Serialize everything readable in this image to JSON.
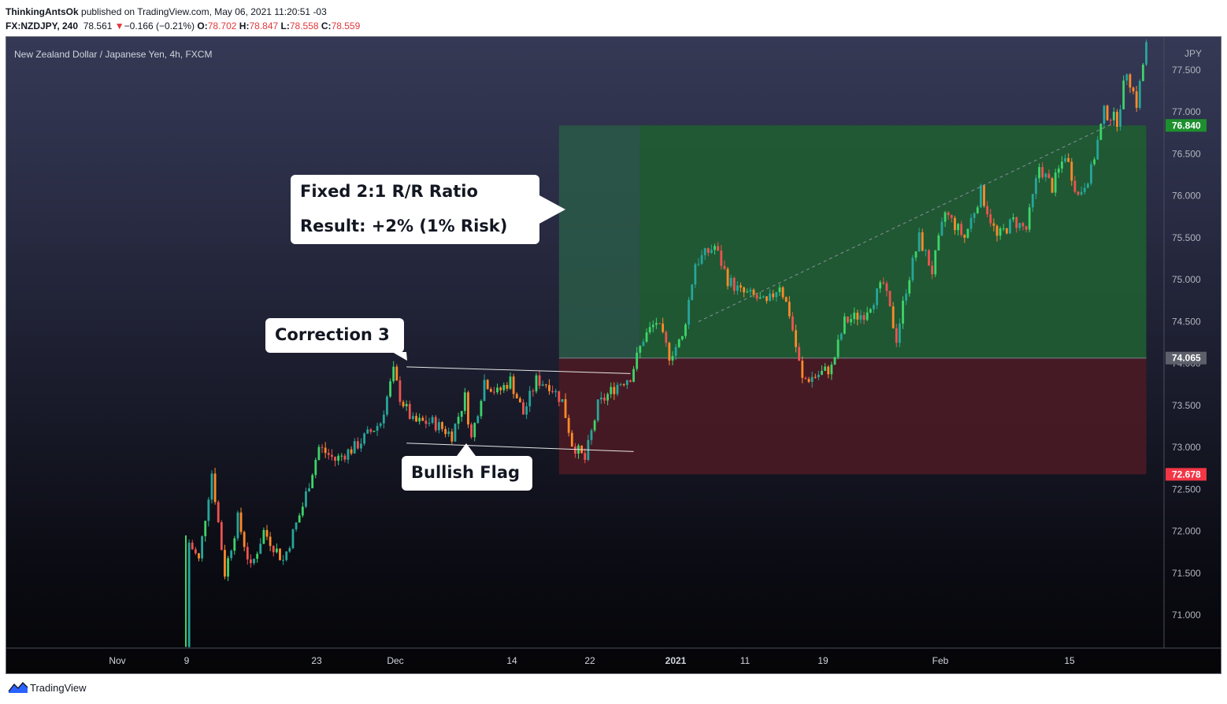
{
  "header": {
    "author": "ThinkingAntsOk",
    "published_text": "published on TradingView.com, May 06, 2021 11:20:51 -03",
    "symbol": "FX:NZDJPY, 240",
    "last": "78.561",
    "change_arrow": "▼",
    "change": "−0.166 (−0.21%)",
    "o_label": "O:",
    "o_value": "78.702",
    "h_label": "H:",
    "h_value": "78.847",
    "l_label": "L:",
    "l_value": "78.558",
    "c_label": "C:",
    "c_value": "78.559"
  },
  "footer": {
    "brand": "TradingView"
  },
  "chart_data": {
    "type": "candlestick",
    "title": "New Zealand Dollar / Japanese Yen, 4h, FXCM",
    "currency": "JPY",
    "ylim": [
      70.6,
      77.85
    ],
    "y_ticks": [
      "71.000",
      "71.500",
      "72.000",
      "72.500",
      "73.000",
      "73.500",
      "74.000",
      "74.500",
      "75.000",
      "75.500",
      "76.000",
      "76.500",
      "77.000",
      "77.500"
    ],
    "x_ticks": [
      "Nov",
      "9",
      "23",
      "Dec",
      "14",
      "22",
      "2021",
      "11",
      "19",
      "Feb",
      "15"
    ],
    "price_path": [
      [
        0,
        70.62
      ],
      [
        0.5,
        71.9
      ],
      [
        4,
        71.65
      ],
      [
        8,
        72.7
      ],
      [
        12,
        71.5
      ],
      [
        16,
        72.15
      ],
      [
        20,
        71.55
      ],
      [
        24,
        72.0
      ],
      [
        30,
        71.65
      ],
      [
        36,
        72.3
      ],
      [
        41,
        73.0
      ],
      [
        46,
        72.85
      ],
      [
        52,
        73.0
      ],
      [
        60,
        73.3
      ],
      [
        64,
        73.9
      ],
      [
        66,
        73.6
      ],
      [
        70,
        73.3
      ],
      [
        76,
        73.3
      ],
      [
        82,
        73.15
      ],
      [
        86,
        73.6
      ],
      [
        88,
        73.1
      ],
      [
        92,
        73.8
      ],
      [
        96,
        73.65
      ],
      [
        100,
        73.8
      ],
      [
        104,
        73.4
      ],
      [
        108,
        73.8
      ],
      [
        112,
        73.75
      ],
      [
        116,
        73.55
      ],
      [
        119,
        73.05
      ],
      [
        123,
        72.85
      ],
      [
        127,
        73.5
      ],
      [
        133,
        73.75
      ],
      [
        137,
        73.85
      ],
      [
        141,
        74.3
      ],
      [
        145,
        74.5
      ],
      [
        149,
        74.1
      ],
      [
        153,
        74.3
      ],
      [
        157,
        75.2
      ],
      [
        163,
        75.4
      ],
      [
        167,
        75.0
      ],
      [
        171,
        74.85
      ],
      [
        175,
        74.8
      ],
      [
        179,
        74.7
      ],
      [
        183,
        74.95
      ],
      [
        186,
        74.6
      ],
      [
        190,
        73.8
      ],
      [
        194,
        73.85
      ],
      [
        199,
        73.95
      ],
      [
        203,
        74.5
      ],
      [
        209,
        74.6
      ],
      [
        215,
        74.95
      ],
      [
        219,
        74.3
      ],
      [
        222,
        74.9
      ],
      [
        226,
        75.5
      ],
      [
        230,
        75.1
      ],
      [
        234,
        75.8
      ],
      [
        240,
        75.5
      ],
      [
        245,
        76.05
      ],
      [
        250,
        75.5
      ],
      [
        255,
        75.7
      ],
      [
        259,
        75.6
      ],
      [
        263,
        76.35
      ],
      [
        267,
        76.1
      ],
      [
        271,
        76.5
      ],
      [
        275,
        76.0
      ],
      [
        279,
        76.3
      ],
      [
        283,
        77.0
      ],
      [
        287,
        76.9
      ],
      [
        290,
        77.5
      ],
      [
        293,
        77.1
      ],
      [
        296,
        77.8
      ]
    ],
    "position": {
      "type": "long",
      "entry": 74.065,
      "target": 76.84,
      "stop": 72.678,
      "entry_label": "74.065",
      "target_label": "76.840",
      "stop_label": "72.678"
    },
    "annotations": {
      "rr_line1": "Fixed 2:1 R/R Ratio",
      "rr_line2": "Result: +2% (1% Risk)",
      "correction": "Correction 3",
      "flag": "Bullish Flag"
    },
    "colors": {
      "up": "#26a69a",
      "up_bright": "#3dd46a",
      "down": "#ef5350",
      "down_alt": "#ff8a2a",
      "target_zone": "#1f5c32",
      "stop_zone": "#4a1a24",
      "target_badge": "#1e8f2e",
      "stop_badge": "#f23645"
    }
  }
}
